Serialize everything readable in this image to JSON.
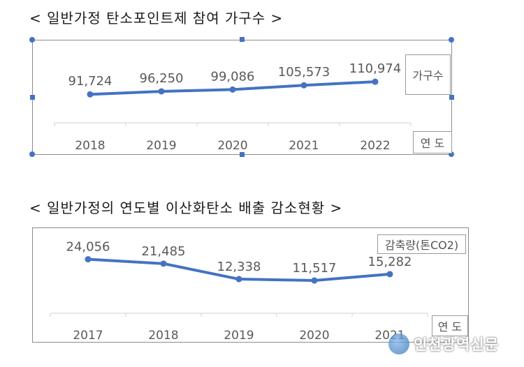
{
  "chart_data": [
    {
      "type": "line",
      "title": "< 일반가정 탄소포인트제 참여 가구수 >",
      "xlabel": "연 도",
      "ylabel": "가구수",
      "categories": [
        "2018",
        "2019",
        "2020",
        "2021",
        "2022"
      ],
      "values": [
        91724,
        96250,
        99086,
        105573,
        110974
      ],
      "value_labels": [
        "91,724",
        "96,250",
        "99,086",
        "105,573",
        "110,974"
      ],
      "ylim": [
        60000,
        125000
      ],
      "line_color": "#4472c4",
      "grid": false
    },
    {
      "type": "line",
      "title": "< 일반가정의 연도별 이산화탄소 배출 감소현황 >",
      "xlabel": "연 도",
      "ylabel": "감축량(톤CO2)",
      "categories": [
        "2017",
        "2018",
        "2019",
        "2020",
        "2021"
      ],
      "values": [
        24056,
        21485,
        12338,
        11517,
        15282
      ],
      "value_labels": [
        "24,056",
        "21,485",
        "12,338",
        "11,517",
        "15,282"
      ],
      "ylim": [
        0,
        28000
      ],
      "line_color": "#4472c4",
      "grid": false
    }
  ],
  "watermark": {
    "text": "인천광역신문"
  }
}
